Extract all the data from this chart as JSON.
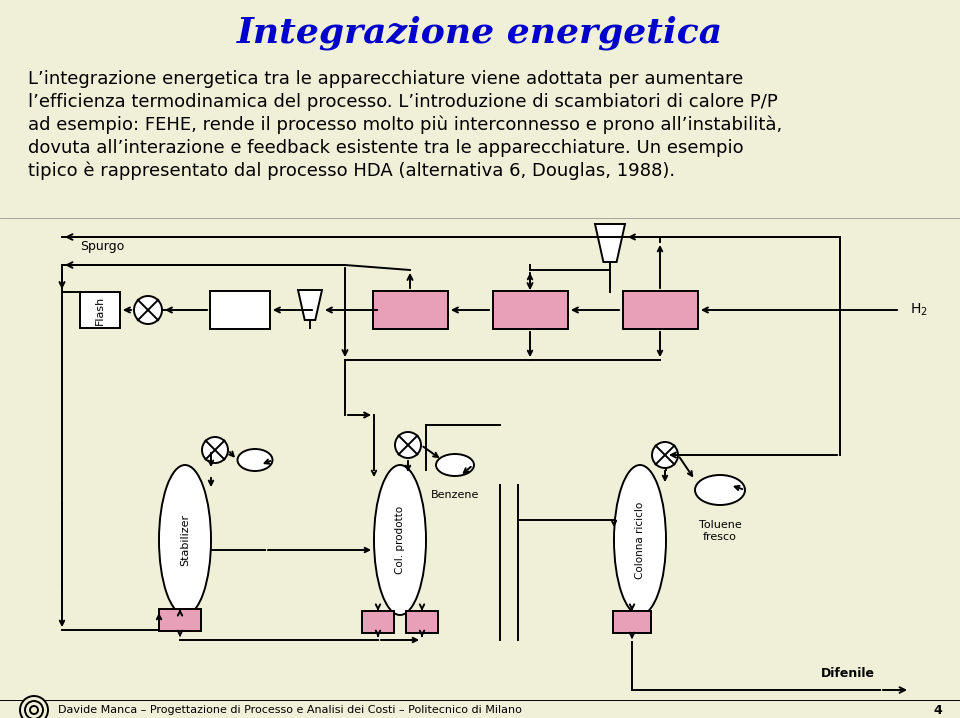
{
  "bg_color": "#f0f0d8",
  "title": "Integrazione energetica",
  "title_color": "#0000cc",
  "title_fontsize": 26,
  "body_lines": [
    "L’integrazione energetica tra le apparecchiature viene adottata per aumentare",
    "l’efficienza termodinamica del processo. L’introduzione di scambiatori di calore P/P",
    "ad esempio: FEHE, rende il processo molto più interconnesso e prono all’instabilità,",
    "dovuta all’interazione e feedback esistente tra le apparecchiature. Un esempio",
    "tipico è rappresentato dal processo HDA (alternativa 6, Douglas, 1988)."
  ],
  "body_fontsize": 13,
  "body_color": "#000000",
  "footer_text": "Davide Manca – Progettazione di Processo e Analisi dei Costi – Politecnico di Milano",
  "footer_page": "4",
  "pink": "#e8a0b8",
  "white": "#ffffff",
  "black": "#000000"
}
